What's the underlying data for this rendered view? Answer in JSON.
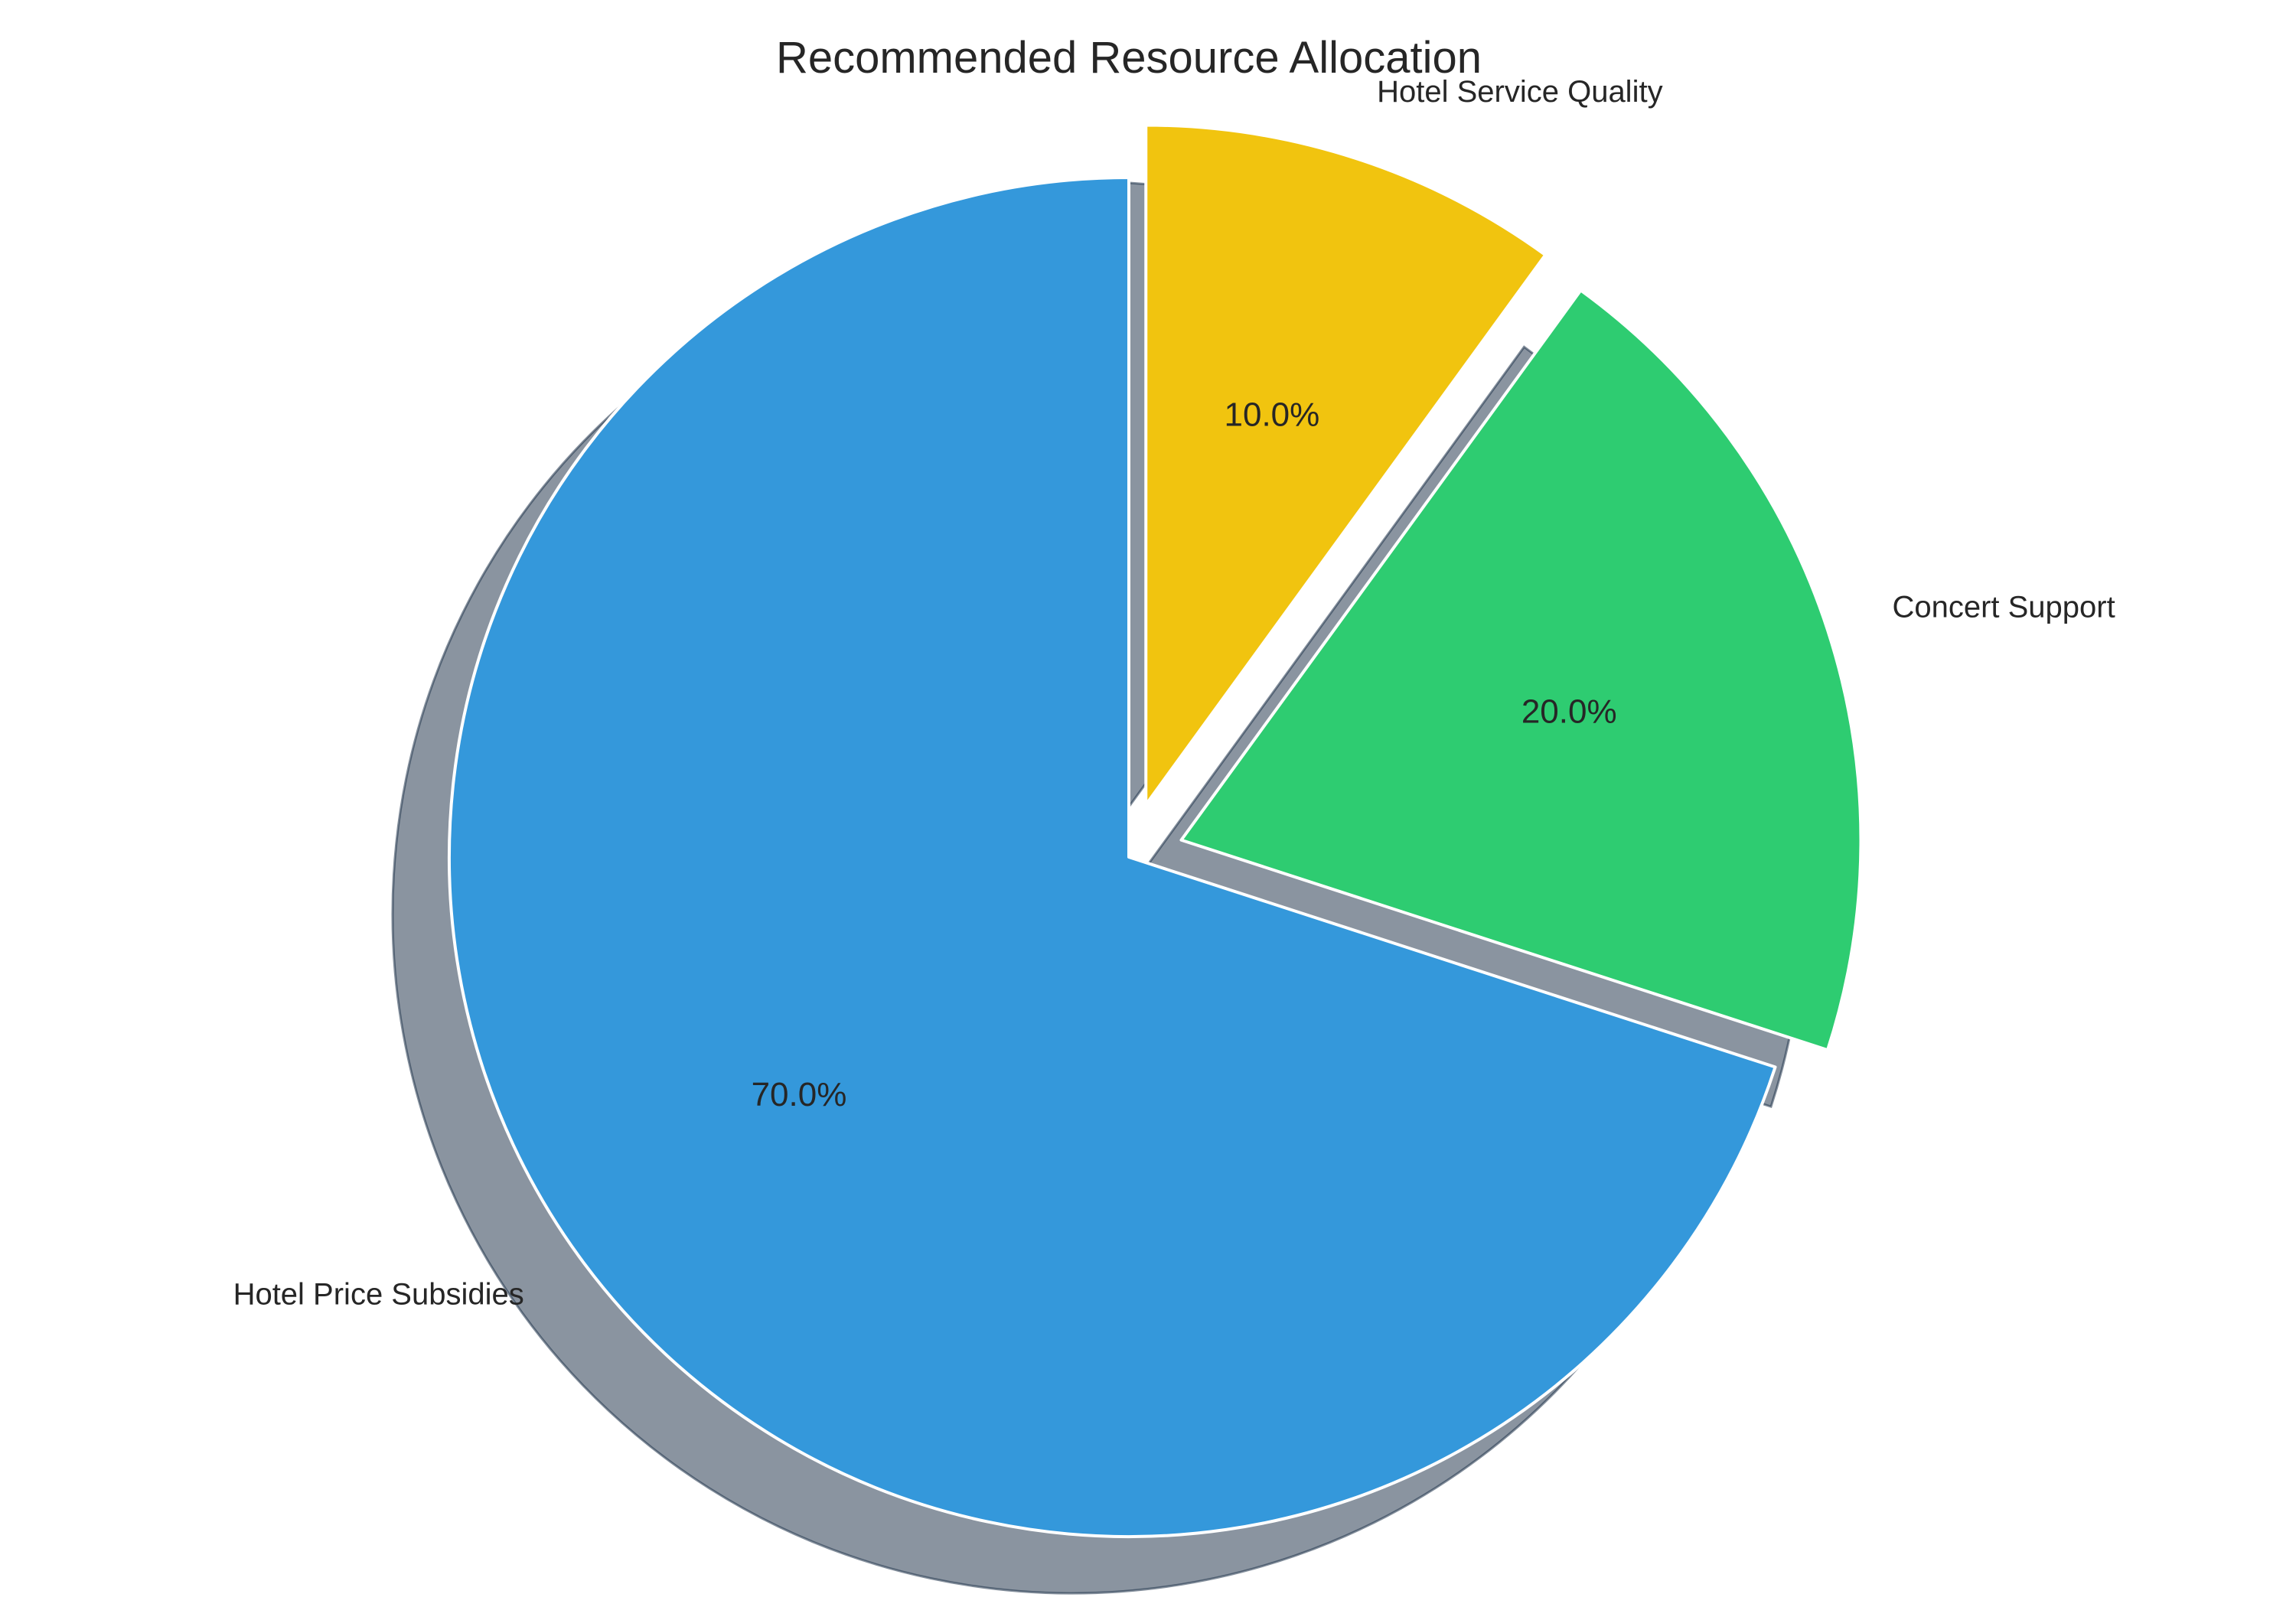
{
  "chart_data": {
    "type": "pie",
    "title": "Recommended Resource Allocation",
    "start_angle_deg": 90,
    "direction": "counterclockwise",
    "shadow": true,
    "slices": [
      {
        "label": "Hotel Price Subsidies",
        "value": 70.0,
        "pct_label": "70.0%",
        "color": "#3498db",
        "exploded": false
      },
      {
        "label": "Concert Support",
        "value": 20.0,
        "pct_label": "20.0%",
        "color": "#2ecc71",
        "exploded": true
      },
      {
        "label": "Hotel Service Quality",
        "value": 10.0,
        "pct_label": "10.0%",
        "color": "#f1c40f",
        "exploded": true
      }
    ]
  }
}
